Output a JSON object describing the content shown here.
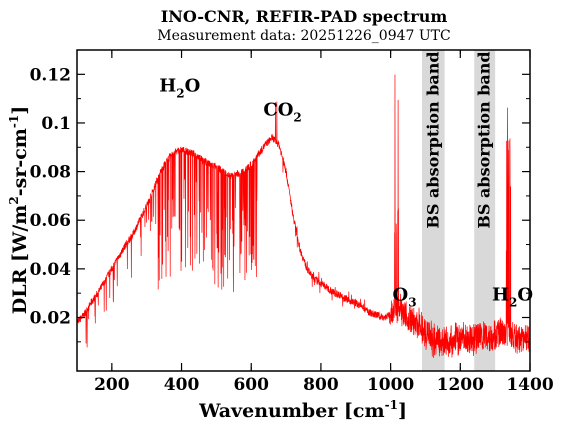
{
  "chart_data": {
    "type": "line",
    "title": "INO-CNR, REFIR-PAD spectrum",
    "subtitle": "Measurement data: 20251226_0947 UTC",
    "xlabel": {
      "main": "Wavenumber [cm",
      "sup": "-1",
      "close": "]"
    },
    "ylabel": {
      "p1": "DLR [W/m",
      "sup1": "2",
      "p2": "-sr-cm",
      "sup2": "-1",
      "p3": "]"
    },
    "xlim": [
      100,
      1400
    ],
    "ylim": [
      -0.002,
      0.13
    ],
    "x_ticks": [
      200,
      400,
      600,
      800,
      1000,
      1200,
      1400
    ],
    "y_ticks": [
      0.02,
      0.04,
      0.06,
      0.08,
      0.1,
      0.12
    ],
    "y_tick_labels": [
      "0.02",
      "0.04",
      "0.06",
      "0.08",
      "0.1",
      "0.12"
    ],
    "grid": false,
    "line_color": "#ff0000",
    "band_color": "#d9d9d9",
    "bands": [
      {
        "x0": 1090,
        "x1": 1155,
        "label": "BS absorption band"
      },
      {
        "x0": 1240,
        "x1": 1300,
        "label": "BS absorption band"
      }
    ],
    "annotations": [
      {
        "base": "H",
        "sub": "2",
        "rest": "O",
        "x": 395,
        "y": 0.113
      },
      {
        "base": "CO",
        "sub": "2",
        "rest": "",
        "x": 690,
        "y": 0.103
      },
      {
        "base": "O",
        "sub": "3",
        "rest": "",
        "x": 1040,
        "y": 0.027
      },
      {
        "base": "H",
        "sub": "2",
        "rest": "O",
        "x": 1350,
        "y": 0.027
      }
    ],
    "series": [
      {
        "x": [
          100,
          120,
          140,
          160,
          180,
          200,
          220,
          240,
          260,
          280,
          300,
          320,
          340,
          360,
          380,
          400,
          420,
          440,
          460,
          480,
          500,
          520,
          540,
          560,
          580,
          600,
          620,
          640,
          660,
          680,
          700,
          720,
          740,
          760,
          780,
          800,
          820,
          840,
          860,
          880,
          900,
          920,
          940,
          960,
          980,
          1000,
          1020,
          1040,
          1060,
          1080,
          1100,
          1120,
          1140,
          1160,
          1180,
          1200,
          1220,
          1240,
          1260,
          1280,
          1300,
          1320,
          1340,
          1360,
          1380,
          1400
        ],
        "y": [
          0.018,
          0.021,
          0.026,
          0.03,
          0.035,
          0.04,
          0.045,
          0.05,
          0.054,
          0.06,
          0.066,
          0.073,
          0.08,
          0.085,
          0.088,
          0.089,
          0.088,
          0.087,
          0.085,
          0.083,
          0.082,
          0.08,
          0.078,
          0.079,
          0.08,
          0.083,
          0.087,
          0.091,
          0.094,
          0.091,
          0.08,
          0.062,
          0.048,
          0.04,
          0.036,
          0.034,
          0.032,
          0.03,
          0.029,
          0.027,
          0.026,
          0.024,
          0.022,
          0.021,
          0.02,
          0.021,
          0.023,
          0.022,
          0.019,
          0.017,
          0.013,
          0.011,
          0.01,
          0.01,
          0.011,
          0.012,
          0.011,
          0.011,
          0.012,
          0.012,
          0.013,
          0.014,
          0.013,
          0.011,
          0.012,
          0.011
        ]
      }
    ]
  }
}
